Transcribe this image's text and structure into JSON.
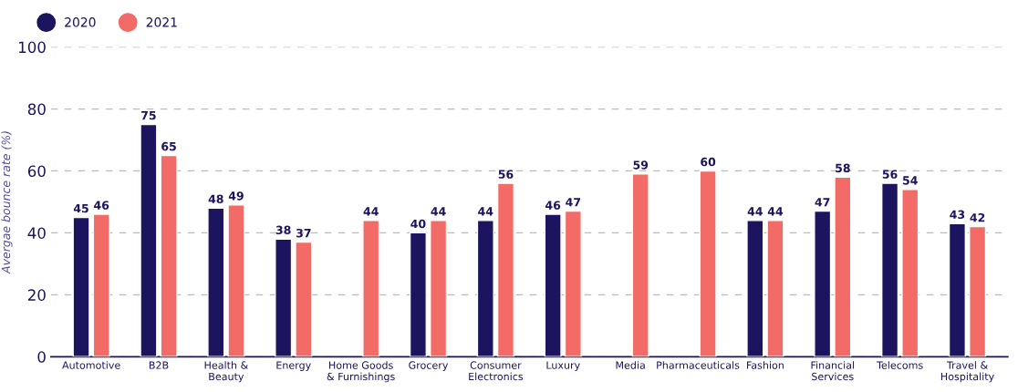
{
  "chart_data": {
    "type": "bar",
    "ylabel": "Avergae bounce rate (%)",
    "categories": [
      "Automotive",
      "B2B",
      "Health &\nBeauty",
      "Energy",
      "Home Goods\n& Furnishings",
      "Grocery",
      "Consumer\nElectronics",
      "Luxury",
      "Media",
      "Pharmaceuticals",
      "Fashion",
      "Financial\nServices",
      "Telecoms",
      "Travel &\nHospitality"
    ],
    "series": [
      {
        "name": "2020",
        "color": "#1d1460",
        "values": [
          45,
          75,
          48,
          38,
          null,
          40,
          44,
          46,
          null,
          null,
          44,
          47,
          56,
          43
        ]
      },
      {
        "name": "2021",
        "color": "#f26b66",
        "values": [
          46,
          65,
          49,
          37,
          44,
          44,
          56,
          47,
          59,
          60,
          44,
          58,
          54,
          42
        ]
      }
    ],
    "ylim": [
      0,
      100
    ],
    "yticks": [
      0,
      20,
      40,
      60,
      80,
      100
    ],
    "grid": "y",
    "legend": "top left",
    "data_labels": true
  }
}
